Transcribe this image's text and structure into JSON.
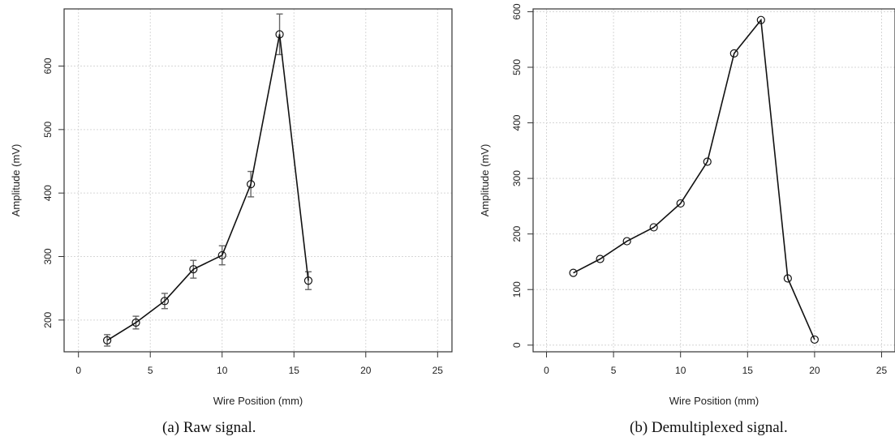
{
  "chart_data": [
    {
      "type": "line",
      "caption": "(a)  Raw signal.",
      "xlabel": "Wire Position (mm)",
      "ylabel": "Amplitude (mV)",
      "xlim": [
        -1,
        26
      ],
      "ylim": [
        150,
        690
      ],
      "xticks": [
        0,
        5,
        10,
        15,
        20,
        25
      ],
      "yticks": [
        200,
        300,
        400,
        500,
        600
      ],
      "grid": true,
      "error_bars": true,
      "series": [
        {
          "x": [
            2,
            4,
            6,
            8,
            10,
            12,
            14,
            16
          ],
          "y": [
            168,
            196,
            230,
            280,
            302,
            414,
            650,
            262
          ],
          "err": [
            9,
            10,
            12,
            14,
            15,
            20,
            32,
            14
          ]
        }
      ]
    },
    {
      "type": "line",
      "caption": "(b)  Demultiplexed signal.",
      "xlabel": "Wire Position (mm)",
      "ylabel": "Amplitude (mV)",
      "xlim": [
        -1,
        26
      ],
      "ylim": [
        -12,
        605
      ],
      "xticks": [
        0,
        5,
        10,
        15,
        20,
        25
      ],
      "yticks": [
        0,
        100,
        200,
        300,
        400,
        500,
        600
      ],
      "grid": true,
      "error_bars": false,
      "series": [
        {
          "x": [
            2,
            4,
            6,
            8,
            10,
            12,
            14,
            16,
            18,
            20
          ],
          "y": [
            130,
            155,
            187,
            212,
            255,
            330,
            525,
            585,
            120,
            10
          ]
        }
      ]
    }
  ]
}
